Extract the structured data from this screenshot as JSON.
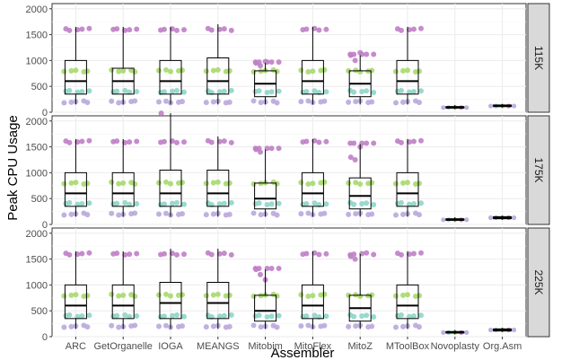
{
  "chart_data": {
    "type": "box",
    "xlabel": "Assembler",
    "ylabel": "Peak CPU Usage",
    "categories": [
      "ARC",
      "GetOrganelle",
      "IOGA",
      "MEANGS",
      "Mitobim",
      "MitoFlex",
      "MitoZ",
      "MToolBox",
      "Novoplasty",
      "Org.Asm"
    ],
    "ylim": [
      0,
      2100
    ],
    "yticks": [
      0,
      500,
      1000,
      1500,
      2000
    ],
    "grid": true,
    "point_colors": [
      "#B9A9DB",
      "#8ED5C9",
      "#A9D86E",
      "#BF7FC7"
    ],
    "point_levels": [
      200,
      400,
      800,
      1600
    ],
    "panels": [
      {
        "label": "115K",
        "boxes": [
          {
            "q1": 350,
            "median": 600,
            "q3": 1000,
            "low": 150,
            "high": 1650,
            "extra": []
          },
          {
            "q1": 350,
            "median": 600,
            "q3": 850,
            "low": 150,
            "high": 1650,
            "extra": []
          },
          {
            "q1": 350,
            "median": 600,
            "q3": 1000,
            "low": 150,
            "high": 1650,
            "extra": []
          },
          {
            "q1": 350,
            "median": 600,
            "q3": 1050,
            "low": 150,
            "high": 1700,
            "extra": []
          },
          {
            "q1": 300,
            "median": 550,
            "q3": 800,
            "low": 150,
            "high": 950,
            "extra": [
              950,
              900,
              980
            ]
          },
          {
            "q1": 350,
            "median": 600,
            "q3": 1000,
            "low": 150,
            "high": 1650,
            "extra": []
          },
          {
            "q1": 300,
            "median": 550,
            "q3": 800,
            "low": 150,
            "high": 1100,
            "extra": [
              1100,
              1000,
              1150
            ]
          },
          {
            "q1": 350,
            "median": 600,
            "q3": 1000,
            "low": 150,
            "high": 1650,
            "extra": []
          },
          {
            "q1": 80,
            "median": 90,
            "q3": 110,
            "low": 60,
            "high": 140,
            "extra": []
          },
          {
            "q1": 110,
            "median": 120,
            "q3": 140,
            "low": 90,
            "high": 160,
            "extra": []
          }
        ]
      },
      {
        "label": "175K",
        "boxes": [
          {
            "q1": 350,
            "median": 600,
            "q3": 1000,
            "low": 150,
            "high": 1650,
            "extra": []
          },
          {
            "q1": 350,
            "median": 600,
            "q3": 1000,
            "low": 150,
            "high": 1650,
            "extra": []
          },
          {
            "q1": 350,
            "median": 600,
            "q3": 1050,
            "low": 150,
            "high": 2150,
            "extra": [
              2150
            ]
          },
          {
            "q1": 350,
            "median": 600,
            "q3": 1050,
            "low": 150,
            "high": 1700,
            "extra": []
          },
          {
            "q1": 300,
            "median": 500,
            "q3": 800,
            "low": 150,
            "high": 1450,
            "extra": [
              1450,
              1400
            ]
          },
          {
            "q1": 350,
            "median": 600,
            "q3": 1000,
            "low": 150,
            "high": 1650,
            "extra": []
          },
          {
            "q1": 300,
            "median": 550,
            "q3": 900,
            "low": 150,
            "high": 1550,
            "extra": [
              1300,
              1250,
              1500
            ]
          },
          {
            "q1": 350,
            "median": 600,
            "q3": 1000,
            "low": 150,
            "high": 1650,
            "extra": []
          },
          {
            "q1": 80,
            "median": 90,
            "q3": 110,
            "low": 60,
            "high": 140,
            "extra": []
          },
          {
            "q1": 110,
            "median": 130,
            "q3": 150,
            "low": 90,
            "high": 170,
            "extra": []
          }
        ]
      },
      {
        "label": "225K",
        "boxes": [
          {
            "q1": 350,
            "median": 600,
            "q3": 1000,
            "low": 150,
            "high": 1650,
            "extra": []
          },
          {
            "q1": 350,
            "median": 600,
            "q3": 1000,
            "low": 150,
            "high": 1650,
            "extra": []
          },
          {
            "q1": 350,
            "median": 650,
            "q3": 1050,
            "low": 150,
            "high": 1700,
            "extra": []
          },
          {
            "q1": 350,
            "median": 650,
            "q3": 1050,
            "low": 150,
            "high": 1700,
            "extra": []
          },
          {
            "q1": 300,
            "median": 500,
            "q3": 800,
            "low": 150,
            "high": 1300,
            "extra": [
              1300,
              1200,
              1100
            ]
          },
          {
            "q1": 350,
            "median": 600,
            "q3": 1000,
            "low": 150,
            "high": 1650,
            "extra": []
          },
          {
            "q1": 300,
            "median": 550,
            "q3": 800,
            "low": 150,
            "high": 1600,
            "extra": [
              1550,
              1500
            ]
          },
          {
            "q1": 350,
            "median": 600,
            "q3": 1000,
            "low": 150,
            "high": 1650,
            "extra": []
          },
          {
            "q1": 70,
            "median": 80,
            "q3": 100,
            "low": 50,
            "high": 130,
            "extra": []
          },
          {
            "q1": 110,
            "median": 130,
            "q3": 150,
            "low": 90,
            "high": 170,
            "extra": []
          }
        ]
      }
    ]
  }
}
